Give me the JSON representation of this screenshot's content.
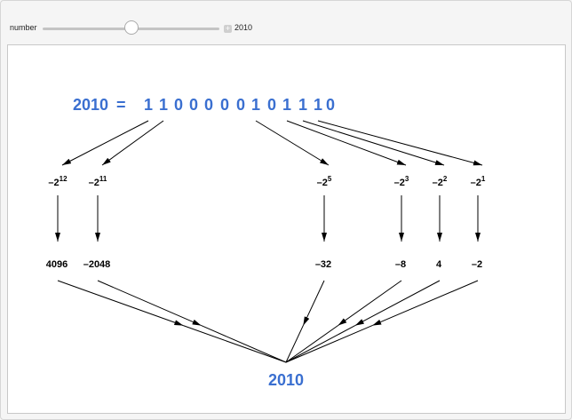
{
  "control": {
    "label": "number",
    "value": "2010",
    "slider_fraction": 0.5,
    "plus_icon": "plus-icon"
  },
  "figure": {
    "number": "2010",
    "equals": "=",
    "digits": [
      "1",
      "1",
      "0",
      "0",
      "0",
      "0",
      "0",
      "1",
      "0",
      "1",
      "1",
      "1",
      "0"
    ],
    "terms": [
      {
        "base": "–2",
        "exp": "12",
        "value": "4096",
        "bit_index": 0
      },
      {
        "base": "–2",
        "exp": "11",
        "value": "–2048",
        "bit_index": 1
      },
      {
        "base": "–2",
        "exp": "5",
        "value": "–32",
        "bit_index": 7
      },
      {
        "base": "–2",
        "exp": "3",
        "value": "–8",
        "bit_index": 9
      },
      {
        "base": "–2",
        "exp": "2",
        "value": "4",
        "bit_index": 10
      },
      {
        "base": "–2",
        "exp": "1",
        "value": "–2",
        "bit_index": 11
      }
    ],
    "result": "2010",
    "accent_color": "#3a6fd0"
  }
}
